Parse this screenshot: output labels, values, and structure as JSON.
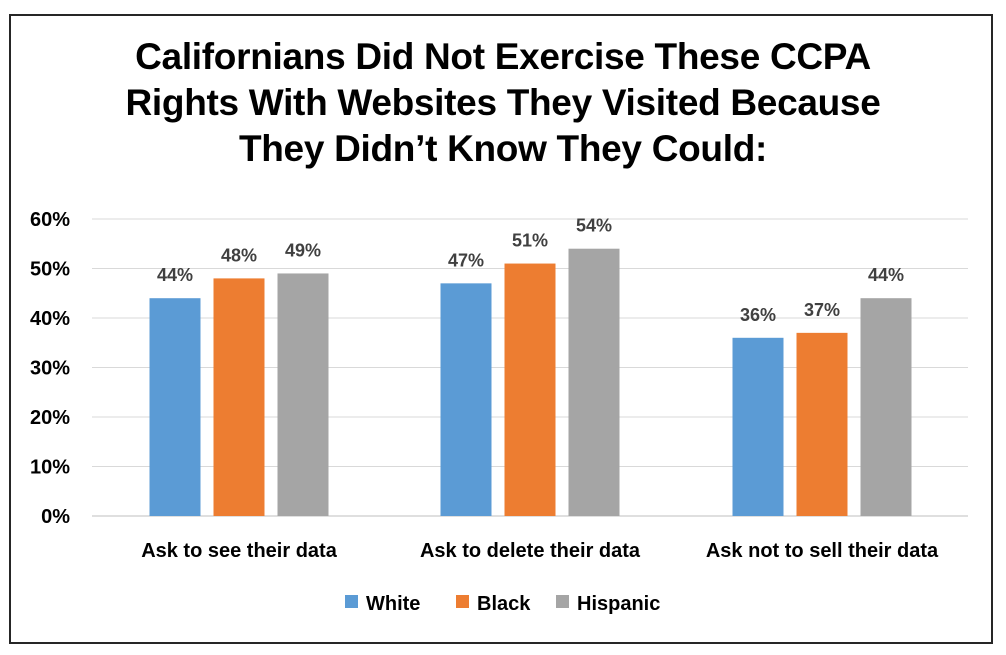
{
  "chart_data": {
    "type": "bar",
    "title": "Californians Did Not Exercise These CCPA\nRights With Websites They Visited Because\nThey Didn’t Know They Could:",
    "categories": [
      "Ask to see their data",
      "Ask to delete their data",
      "Ask not to sell their data"
    ],
    "series": [
      {
        "name": "White",
        "values": [
          44,
          47,
          36
        ],
        "color": "#5B9BD5"
      },
      {
        "name": "Black",
        "values": [
          48,
          51,
          37
        ],
        "color": "#ED7D31"
      },
      {
        "name": "Hispanic",
        "values": [
          49,
          54,
          44
        ],
        "color": "#A5A5A5"
      }
    ],
    "value_format": "percent",
    "ylim": [
      0,
      60
    ],
    "yticks": [
      0,
      10,
      20,
      30,
      40,
      50,
      60
    ],
    "ytick_labels": [
      "0%",
      "10%",
      "20%",
      "30%",
      "40%",
      "50%",
      "60%"
    ],
    "xlabel": "",
    "ylabel": "",
    "grid": true,
    "legend_position": "bottom",
    "data_labels": true
  }
}
